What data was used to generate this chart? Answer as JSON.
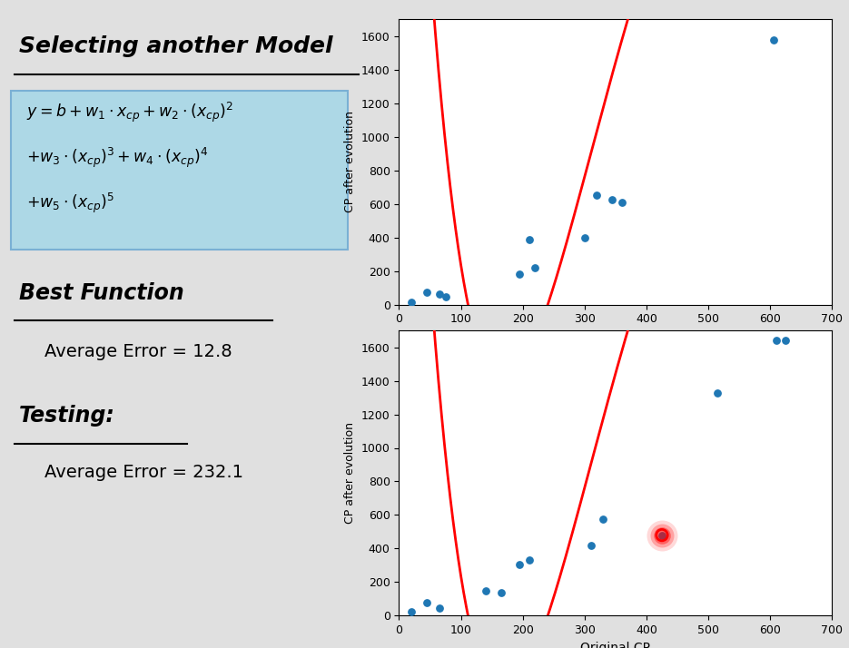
{
  "title": "Selecting another Model",
  "best_function_label": "Best Function",
  "best_error_label": "Average Error = 12.8",
  "testing_label": "Testing:",
  "testing_error_label": "Average Error = 232.1",
  "plot1_scatter_x": [
    20,
    45,
    65,
    75,
    195,
    210,
    220,
    300,
    320,
    345,
    360,
    605
  ],
  "plot1_scatter_y": [
    15,
    75,
    65,
    45,
    180,
    390,
    220,
    400,
    650,
    625,
    610,
    1580
  ],
  "plot2_scatter_x": [
    20,
    45,
    65,
    140,
    165,
    195,
    210,
    310,
    330,
    425,
    515,
    610,
    625
  ],
  "plot2_scatter_y": [
    25,
    80,
    45,
    150,
    135,
    305,
    330,
    420,
    575,
    480,
    1330,
    1640,
    1640
  ],
  "plot2_special_x": 425,
  "plot2_special_y": 480,
  "xlabel": "Original CP",
  "ylabel": "CP after evolution",
  "xlim": [
    0,
    700
  ],
  "ylim": [
    0,
    1700
  ],
  "yticks": [
    0,
    200,
    400,
    600,
    800,
    1000,
    1200,
    1400,
    1600
  ],
  "xticks": [
    0,
    100,
    200,
    300,
    400,
    500,
    600,
    700
  ],
  "scatter_color": "#1f77b4",
  "curve_color": "#ff0000",
  "formula_bg": "#add8e6",
  "slide_bg": "#e0e0e0"
}
